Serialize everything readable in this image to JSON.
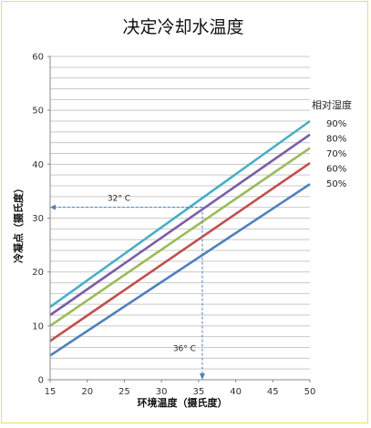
{
  "chart_data": {
    "type": "line",
    "title": "决定冷却水温度",
    "xlabel": "环境温度（摄氏度）",
    "ylabel": "冷凝点（摄氏度）",
    "xlim": [
      15,
      50
    ],
    "ylim": [
      0,
      60
    ],
    "x_ticks": [
      15,
      20,
      25,
      30,
      35,
      40,
      45,
      50
    ],
    "y_ticks": [
      0,
      10,
      20,
      30,
      40,
      50,
      60
    ],
    "grid": "horizontal",
    "legend_title": "相对湿度",
    "legend_position": "right",
    "series": [
      {
        "name": "90%",
        "color": "#4aaec6",
        "x": [
          15,
          50
        ],
        "y": [
          13.5,
          48
        ]
      },
      {
        "name": "80%",
        "color": "#7b5ea7",
        "x": [
          15,
          50
        ],
        "y": [
          12,
          45.5
        ]
      },
      {
        "name": "70%",
        "color": "#9bbb59",
        "x": [
          15,
          50
        ],
        "y": [
          10,
          43
        ]
      },
      {
        "name": "60%",
        "color": "#c0504d",
        "x": [
          15,
          50
        ],
        "y": [
          7.2,
          40.2
        ]
      },
      {
        "name": "50%",
        "color": "#4f81bd",
        "x": [
          15,
          50
        ],
        "y": [
          4.5,
          36.3
        ]
      }
    ],
    "annotations": [
      {
        "text": "32° C",
        "kind": "horizontal-arrow",
        "y": 32,
        "x_from": 35.5,
        "x_to": 15
      },
      {
        "text": "36° C",
        "kind": "vertical-arrow",
        "x": 35.5,
        "y_from": 32,
        "y_to": 0
      }
    ]
  }
}
